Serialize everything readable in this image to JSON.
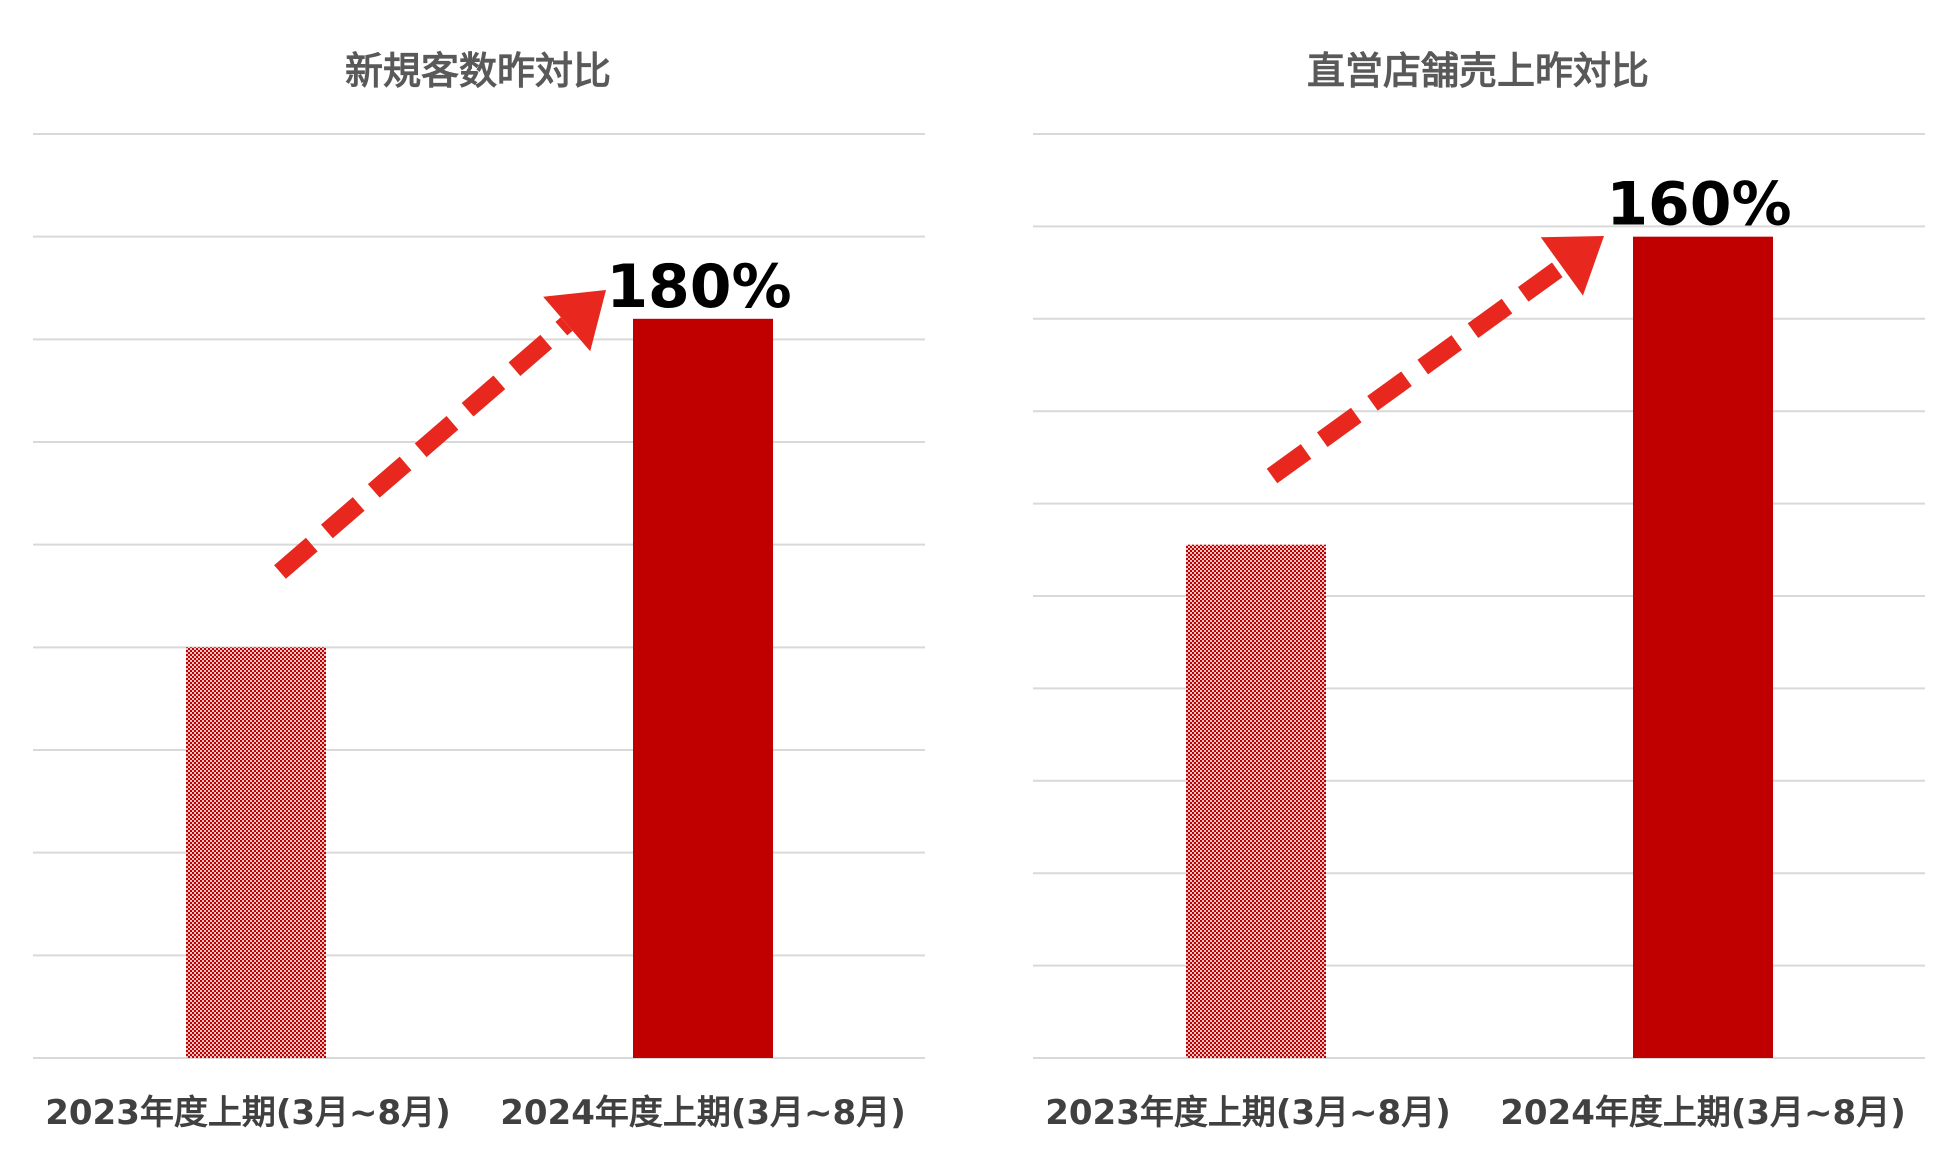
{
  "colors": {
    "bar_solid": "#c00000",
    "bar_pattern": "#c00000",
    "arrow": "#e8281e",
    "grid": "#d9d9d9",
    "title": "#595959"
  },
  "chart_data": [
    {
      "type": "bar",
      "title": "新規客数昨対比",
      "categories": [
        "2023年度上期(3月~8月)",
        "2024年度上期(3月~8月)"
      ],
      "values": [
        100,
        180
      ],
      "data_labels": [
        "",
        "180%"
      ],
      "ylim": [
        0,
        225
      ],
      "grid": true,
      "gridline_count": 9,
      "legend": "none",
      "annotations": [
        "dashed-arrow-up"
      ]
    },
    {
      "type": "bar",
      "title": "直営店舗売上昨対比",
      "categories": [
        "2023年度上期(3月~8月)",
        "2024年度上期(3月~8月)"
      ],
      "values": [
        100,
        160
      ],
      "data_labels": [
        "",
        "160%"
      ],
      "ylim": [
        0,
        180
      ],
      "grid": true,
      "gridline_count": 10,
      "legend": "none",
      "annotations": [
        "dashed-arrow-up"
      ]
    }
  ]
}
